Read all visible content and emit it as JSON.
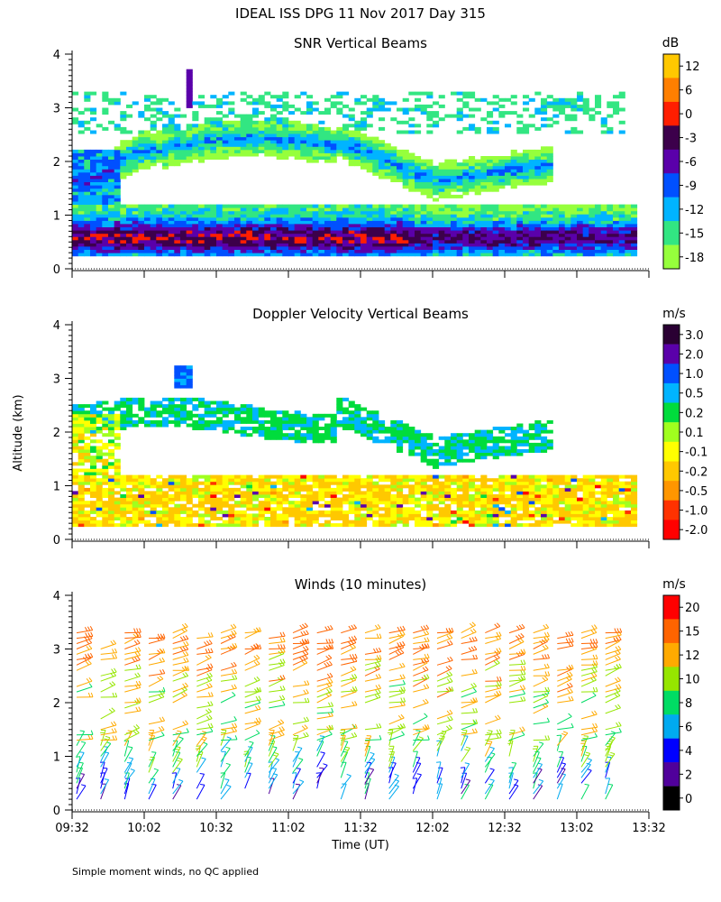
{
  "title": "IDEAL ISS DPG  11 Nov 2017 Day 315",
  "y_axis_label": "Altitude (km)",
  "x_axis_label": "Time (UT)",
  "footer": "Simple moment winds, no QC applied",
  "x_ticks": [
    "09:32",
    "10:02",
    "10:32",
    "11:02",
    "11:32",
    "12:02",
    "12:32",
    "13:02",
    "13:32"
  ],
  "y_ticks": [
    "0",
    "1",
    "2",
    "3",
    "4"
  ],
  "chart_data": [
    {
      "type": "heatmap",
      "title": "SNR Vertical Beams",
      "unit": "dB",
      "xlabel": "Time (UT)",
      "ylabel": "Altitude (km)",
      "xlim": [
        "09:32",
        "13:32"
      ],
      "ylim": [
        0,
        4
      ],
      "colorbar": {
        "labels": [
          "12",
          "6",
          "0",
          "-3",
          "-6",
          "-9",
          "-12",
          "-15",
          "-18"
        ],
        "colors": [
          "#ffc800",
          "#ff7f00",
          "#ff1e00",
          "#3c004b",
          "#5a00aa",
          "#0050ff",
          "#00b4ff",
          "#32e682",
          "#96ff3c"
        ]
      },
      "features": [
        {
          "name": "boundary layer strong return",
          "alt_km": [
            0.2,
            1.1
          ],
          "time": [
            "09:32",
            "13:32"
          ]
        },
        {
          "name": "elevated layer",
          "alt_km": [
            1.4,
            2.6
          ],
          "time": [
            "09:32",
            "12:50"
          ]
        },
        {
          "name": "upper echoes",
          "alt_km": [
            2.5,
            3.7
          ],
          "time": [
            "09:32",
            "13:20"
          ]
        }
      ]
    },
    {
      "type": "heatmap",
      "title": "Doppler Velocity Vertical Beams",
      "unit": "m/s",
      "xlabel": "Time (UT)",
      "ylabel": "Altitude (km)",
      "xlim": [
        "09:32",
        "13:32"
      ],
      "ylim": [
        0,
        4
      ],
      "colorbar": {
        "labels": [
          "3.0",
          "2.0",
          "1.0",
          "0.5",
          "0.2",
          "0.1",
          "-0.1",
          "-0.2",
          "-0.5",
          "-1.0",
          "-2.0"
        ],
        "colors": [
          "#2a0033",
          "#5a00aa",
          "#0050ff",
          "#00b4ff",
          "#00dc3c",
          "#a0ff1e",
          "#ffff00",
          "#ffc800",
          "#ff9600",
          "#ff3200",
          "#ff0000"
        ]
      },
      "features": [
        {
          "name": "boundary layer",
          "alt_km": [
            0.2,
            1.2
          ],
          "value_range_ms": [
            -0.2,
            0.1
          ]
        },
        {
          "name": "elevated layer",
          "alt_km": [
            1.4,
            2.6
          ],
          "value_range_ms": [
            0.1,
            0.5
          ]
        }
      ]
    },
    {
      "type": "wind_barbs",
      "title": "Winds (10 minutes)",
      "unit": "m/s",
      "xlabel": "Time (UT)",
      "ylabel": "Altitude (km)",
      "xlim": [
        "09:32",
        "13:32"
      ],
      "ylim": [
        0,
        4
      ],
      "colorbar": {
        "labels": [
          "20",
          "15",
          "12",
          "10",
          "8",
          "6",
          "4",
          "2",
          "0"
        ],
        "colors": [
          "#ff0000",
          "#ff6400",
          "#ffaa00",
          "#96e600",
          "#00dc64",
          "#00aaf0",
          "#0000ff",
          "#50009b",
          "#000000"
        ]
      },
      "profile_times": [
        "09:32",
        "09:42",
        "09:52",
        "10:02",
        "10:12",
        "10:22",
        "10:32",
        "10:42",
        "10:52",
        "11:02",
        "11:12",
        "11:22",
        "11:32",
        "11:42",
        "11:52",
        "12:02",
        "12:12",
        "12:22",
        "12:32",
        "12:42",
        "12:52",
        "13:02",
        "13:12"
      ],
      "typical_speed_ms_by_altitude": [
        {
          "alt_km": 0.5,
          "speed": 5
        },
        {
          "alt_km": 1.0,
          "speed": 9
        },
        {
          "alt_km": 1.5,
          "speed": 11
        },
        {
          "alt_km": 2.0,
          "speed": 11
        },
        {
          "alt_km": 2.5,
          "speed": 12
        },
        {
          "alt_km": 3.0,
          "speed": 15
        }
      ]
    }
  ]
}
